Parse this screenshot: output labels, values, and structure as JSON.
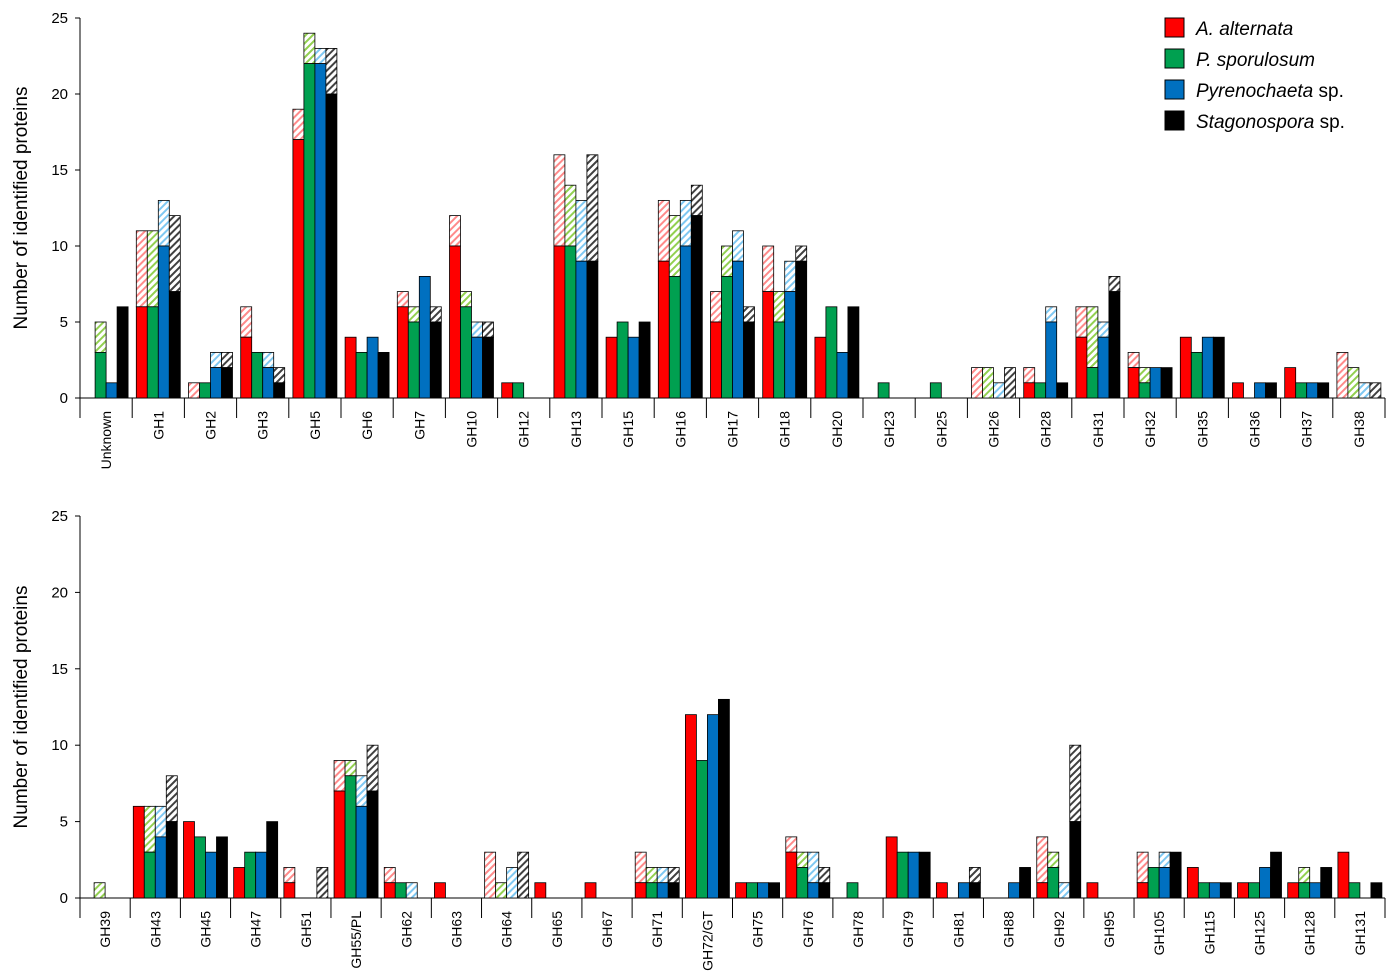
{
  "legend": [
    {
      "name_italic": "A. alternata",
      "name_rest": "",
      "color": "#ff0000"
    },
    {
      "name_italic": "P. sporulosum",
      "name_rest": "",
      "color": "#00a050"
    },
    {
      "name_italic": "Pyrenochaeta",
      "name_rest": " sp.",
      "color": "#0070c0"
    },
    {
      "name_italic": "Stagonospora",
      "name_rest": " sp.",
      "color": "#000000"
    }
  ],
  "hatch_colors": [
    "#ff8a8a",
    "#92d050",
    "#7ec8f2",
    "#404040"
  ],
  "chart_data": [
    {
      "type": "bar",
      "ylabel": "Number of identified proteins",
      "ylim": [
        0,
        25
      ],
      "yticks": [
        0,
        5,
        10,
        15,
        20,
        25
      ],
      "legend_position": "top-right",
      "categories": [
        "Unknown",
        "GH1",
        "GH2",
        "GH3",
        "GH5",
        "GH6",
        "GH7",
        "GH10",
        "GH12",
        "GH13",
        "GH15",
        "GH16",
        "GH17",
        "GH18",
        "GH20",
        "GH23",
        "GH25",
        "GH26",
        "GH28",
        "GH31",
        "GH32",
        "GH35",
        "GH36",
        "GH37",
        "GH38"
      ],
      "series": [
        {
          "name": "A. alternata",
          "solid": [
            0,
            6,
            0,
            4,
            17,
            4,
            6,
            10,
            1,
            10,
            4,
            9,
            5,
            7,
            4,
            0,
            0,
            0,
            1,
            4,
            2,
            4,
            1,
            2,
            0
          ],
          "total": [
            0,
            11,
            1,
            6,
            19,
            4,
            7,
            12,
            1,
            16,
            4,
            13,
            7,
            10,
            4,
            0,
            0,
            2,
            2,
            6,
            3,
            4,
            1,
            2,
            3
          ]
        },
        {
          "name": "P. sporulosum",
          "solid": [
            3,
            6,
            1,
            3,
            22,
            3,
            5,
            6,
            1,
            10,
            5,
            8,
            8,
            5,
            6,
            1,
            1,
            0,
            1,
            2,
            1,
            3,
            0,
            1,
            0
          ],
          "total": [
            5,
            11,
            1,
            3,
            24,
            3,
            6,
            7,
            1,
            14,
            5,
            12,
            10,
            7,
            6,
            1,
            1,
            2,
            1,
            6,
            2,
            3,
            0,
            1,
            2
          ]
        },
        {
          "name": "Pyrenochaeta sp.",
          "solid": [
            1,
            10,
            2,
            2,
            22,
            4,
            8,
            4,
            0,
            9,
            4,
            10,
            9,
            7,
            3,
            0,
            0,
            0,
            5,
            4,
            2,
            4,
            1,
            1,
            0
          ],
          "total": [
            1,
            13,
            3,
            3,
            23,
            4,
            8,
            5,
            0,
            13,
            4,
            13,
            11,
            9,
            3,
            0,
            0,
            1,
            6,
            5,
            2,
            4,
            1,
            1,
            1
          ]
        },
        {
          "name": "Stagonospora sp.",
          "solid": [
            6,
            7,
            2,
            1,
            20,
            3,
            5,
            4,
            0,
            9,
            5,
            12,
            5,
            9,
            6,
            0,
            0,
            0,
            1,
            7,
            2,
            4,
            1,
            1,
            0
          ],
          "total": [
            6,
            12,
            3,
            2,
            23,
            3,
            6,
            5,
            0,
            16,
            5,
            14,
            6,
            10,
            6,
            0,
            0,
            2,
            1,
            8,
            2,
            4,
            1,
            1,
            1
          ]
        }
      ]
    },
    {
      "type": "bar",
      "ylabel": "Number of identified proteins",
      "ylim": [
        0,
        25
      ],
      "yticks": [
        0,
        5,
        10,
        15,
        20,
        25
      ],
      "categories": [
        "GH39",
        "GH43",
        "GH45",
        "GH47",
        "GH51",
        "GH55/PL",
        "GH62",
        "GH63",
        "GH64",
        "GH65",
        "GH67",
        "GH71",
        "GH72/GT",
        "GH75",
        "GH76",
        "GH78",
        "GH79",
        "GH81",
        "GH88",
        "GH92",
        "GH95",
        "GH105",
        "GH115",
        "GH125",
        "GH128",
        "GH131"
      ],
      "series": [
        {
          "name": "A. alternata",
          "solid": [
            0,
            6,
            5,
            2,
            1,
            7,
            1,
            1,
            0,
            1,
            1,
            1,
            12,
            1,
            3,
            0,
            4,
            1,
            0,
            1,
            1,
            1,
            2,
            1,
            1,
            3
          ],
          "total": [
            0,
            6,
            5,
            2,
            2,
            9,
            2,
            1,
            3,
            1,
            1,
            3,
            12,
            1,
            4,
            0,
            4,
            1,
            0,
            4,
            1,
            3,
            2,
            1,
            1,
            3
          ]
        },
        {
          "name": "P. sporulosum",
          "solid": [
            0,
            3,
            4,
            3,
            0,
            8,
            1,
            0,
            0,
            0,
            0,
            1,
            9,
            1,
            2,
            1,
            3,
            0,
            0,
            2,
            0,
            2,
            1,
            1,
            1,
            1
          ],
          "total": [
            1,
            6,
            4,
            3,
            0,
            9,
            1,
            0,
            1,
            0,
            0,
            2,
            9,
            1,
            3,
            1,
            3,
            0,
            0,
            3,
            0,
            2,
            1,
            1,
            2,
            1
          ]
        },
        {
          "name": "Pyrenochaeta sp.",
          "solid": [
            0,
            4,
            3,
            3,
            0,
            6,
            0,
            0,
            0,
            0,
            0,
            1,
            12,
            1,
            1,
            0,
            3,
            1,
            1,
            0,
            0,
            2,
            1,
            2,
            1,
            0
          ],
          "total": [
            0,
            6,
            3,
            3,
            0,
            8,
            1,
            0,
            2,
            0,
            0,
            2,
            12,
            1,
            3,
            0,
            3,
            1,
            1,
            1,
            0,
            3,
            1,
            2,
            1,
            0
          ]
        },
        {
          "name": "Stagonospora sp.",
          "solid": [
            0,
            5,
            4,
            5,
            0,
            7,
            0,
            0,
            0,
            0,
            0,
            1,
            13,
            1,
            1,
            0,
            3,
            1,
            2,
            5,
            0,
            3,
            1,
            3,
            2,
            1
          ],
          "total": [
            0,
            8,
            4,
            5,
            2,
            10,
            0,
            0,
            3,
            0,
            0,
            2,
            13,
            1,
            2,
            0,
            3,
            2,
            2,
            10,
            0,
            3,
            1,
            3,
            2,
            1
          ]
        }
      ]
    }
  ]
}
